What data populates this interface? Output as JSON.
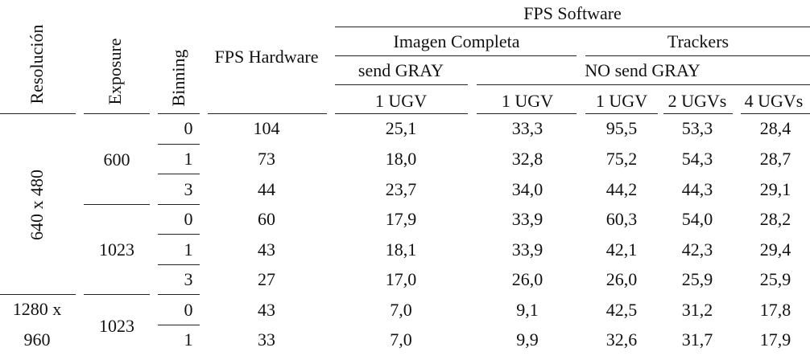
{
  "header": {
    "resolucion": "Resolución",
    "exposure": "Exposure",
    "binning": "Binning",
    "fps_hardware": "FPS Hardware",
    "fps_software": "FPS Software",
    "imagen_completa": "Imagen Completa",
    "trackers": "Trackers",
    "send_gray": "send GRAY",
    "no_send_gray": "NO send GRAY",
    "col_1ugv_a": "1 UGV",
    "col_1ugv_b": "1 UGV",
    "col_1ugv_c": "1 UGV",
    "col_2ugvs": "2 UGVs",
    "col_4ugvs": "4 UGVs"
  },
  "groups": {
    "res_640": "640 x 480",
    "res_1280_line1": "1280 x",
    "res_1280_line2": "960",
    "exp_600": "600",
    "exp_1023_a": "1023",
    "exp_1023_b": "1023"
  },
  "rows": [
    {
      "binning": "0",
      "fps_hw": "104",
      "send_gray_1ugv": "25,1",
      "nosend_img_1ugv": "33,3",
      "trk_1ugv": "95,5",
      "trk_2ugvs": "53,3",
      "trk_4ugvs": "28,4"
    },
    {
      "binning": "1",
      "fps_hw": "73",
      "send_gray_1ugv": "18,0",
      "nosend_img_1ugv": "32,8",
      "trk_1ugv": "75,2",
      "trk_2ugvs": "54,3",
      "trk_4ugvs": "28,7"
    },
    {
      "binning": "3",
      "fps_hw": "44",
      "send_gray_1ugv": "23,7",
      "nosend_img_1ugv": "34,0",
      "trk_1ugv": "44,2",
      "trk_2ugvs": "44,3",
      "trk_4ugvs": "29,1"
    },
    {
      "binning": "0",
      "fps_hw": "60",
      "send_gray_1ugv": "17,9",
      "nosend_img_1ugv": "33,9",
      "trk_1ugv": "60,3",
      "trk_2ugvs": "54,0",
      "trk_4ugvs": "28,2"
    },
    {
      "binning": "1",
      "fps_hw": "43",
      "send_gray_1ugv": "18,1",
      "nosend_img_1ugv": "33,9",
      "trk_1ugv": "42,1",
      "trk_2ugvs": "42,3",
      "trk_4ugvs": "29,4"
    },
    {
      "binning": "3",
      "fps_hw": "27",
      "send_gray_1ugv": "17,0",
      "nosend_img_1ugv": "26,0",
      "trk_1ugv": "26,0",
      "trk_2ugvs": "25,9",
      "trk_4ugvs": "25,9"
    },
    {
      "binning": "0",
      "fps_hw": "43",
      "send_gray_1ugv": "7,0",
      "nosend_img_1ugv": "9,1",
      "trk_1ugv": "42,5",
      "trk_2ugvs": "31,2",
      "trk_4ugvs": "17,8"
    },
    {
      "binning": "1",
      "fps_hw": "33",
      "send_gray_1ugv": "7,0",
      "nosend_img_1ugv": "9,9",
      "trk_1ugv": "32,6",
      "trk_2ugvs": "31,7",
      "trk_4ugvs": "17,9"
    }
  ]
}
